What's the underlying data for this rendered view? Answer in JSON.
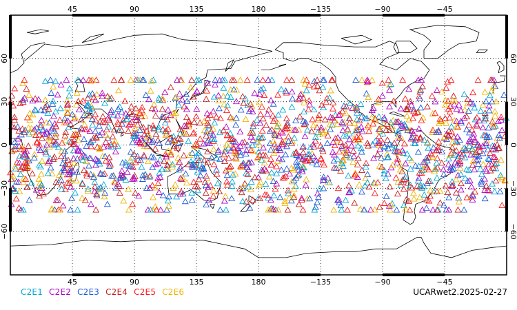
{
  "chart_data": {
    "type": "scatter",
    "projection": "equirectangular",
    "center_longitude": 180,
    "lon_range": [
      0,
      360
    ],
    "lat_range": [
      -90,
      90
    ],
    "marker": "triangle",
    "grid": true,
    "lon_tick_labels": [
      "45",
      "90",
      "135",
      "180",
      "−135",
      "−90",
      "−45"
    ],
    "lat_tick_labels_left": [
      "60",
      "30",
      "0",
      "−30",
      "−60"
    ],
    "lat_tick_labels_right": [
      "60",
      "30",
      "0",
      "−30",
      "−60"
    ],
    "coverage_lat_range": [
      -45,
      45
    ],
    "series": [
      {
        "name": "C2E1",
        "color": "#00a8d8"
      },
      {
        "name": "C2E2",
        "color": "#b000c8"
      },
      {
        "name": "C2E3",
        "color": "#1e5ad8"
      },
      {
        "name": "C2E4",
        "color": "#c81e1e"
      },
      {
        "name": "C2E5",
        "color": "#ff1a1a"
      },
      {
        "name": "C2E6",
        "color": "#f0b400"
      }
    ],
    "points_per_series": 300
  },
  "footer": {
    "stamp": "UCARwet2.2025-02-27"
  }
}
